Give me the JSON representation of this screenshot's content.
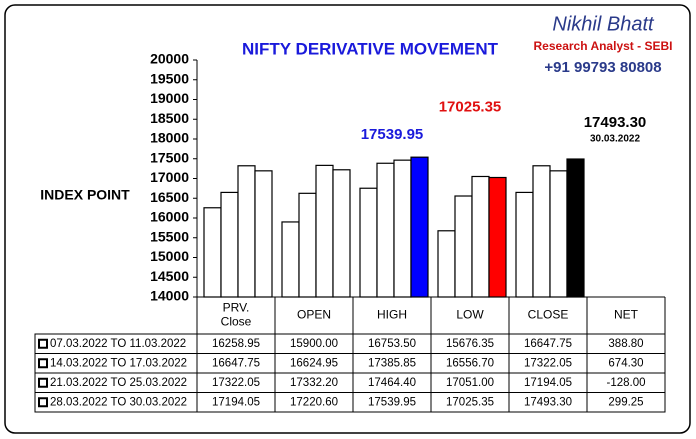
{
  "chart_data": {
    "type": "bar",
    "title": "NIFTY DERIVATIVE MOVEMENT",
    "brand": {
      "name": "Nikhil Bhatt",
      "role": "Research Analyst - SEBI",
      "phone": "+91 99793 80808"
    },
    "ylabel": "INDEX POINT",
    "categories": [
      "PRV. Close",
      "OPEN",
      "HIGH",
      "LOW",
      "CLOSE"
    ],
    "net_header": "NET",
    "ylim": [
      14000,
      20000
    ],
    "yticks": [
      14000,
      14500,
      15000,
      15500,
      16000,
      16500,
      17000,
      17500,
      18000,
      18500,
      19000,
      19500,
      20000
    ],
    "series": [
      {
        "name": "07.03.2022 TO 11.03.2022",
        "color": "#ffffff",
        "values": [
          16258.95,
          15900,
          16753.5,
          15676.35,
          16647.75
        ],
        "value_labels": [
          "16258.95",
          "15900.00",
          "16753.50",
          "15676.35",
          "16647.75"
        ],
        "net": 388.8,
        "net_label": "388.80"
      },
      {
        "name": "14.03.2022 TO 17.03.2022",
        "color": "#ffffff",
        "values": [
          16647.75,
          16624.95,
          17385.85,
          16556.7,
          17322.05
        ],
        "value_labels": [
          "16647.75",
          "16624.95",
          "17385.85",
          "16556.70",
          "17322.05"
        ],
        "net": 674.3,
        "net_label": "674.30"
      },
      {
        "name": "21.03.2022 TO 25.03.2022",
        "color": "#ffffff",
        "values": [
          17322.05,
          17332.2,
          17464.4,
          17051,
          17194.05
        ],
        "value_labels": [
          "17322.05",
          "17332.20",
          "17464.40",
          "17051.00",
          "17194.05"
        ],
        "net": -128,
        "net_label": "-128.00"
      },
      {
        "name": "28.03.2022 TO 30.03.2022",
        "color": "#ffffff",
        "colors": [
          "#ffffff",
          "#ffffff",
          "#0000ff",
          "#ff0000",
          "#000000"
        ],
        "values": [
          17194.05,
          17220.6,
          17539.95,
          17025.35,
          17493.3
        ],
        "value_labels": [
          "17194.05",
          "17220.60",
          "17539.95",
          "17025.35",
          "17493.30"
        ],
        "net": 299.25,
        "net_label": "299.25"
      }
    ],
    "close_date": "30.03.2022"
  }
}
